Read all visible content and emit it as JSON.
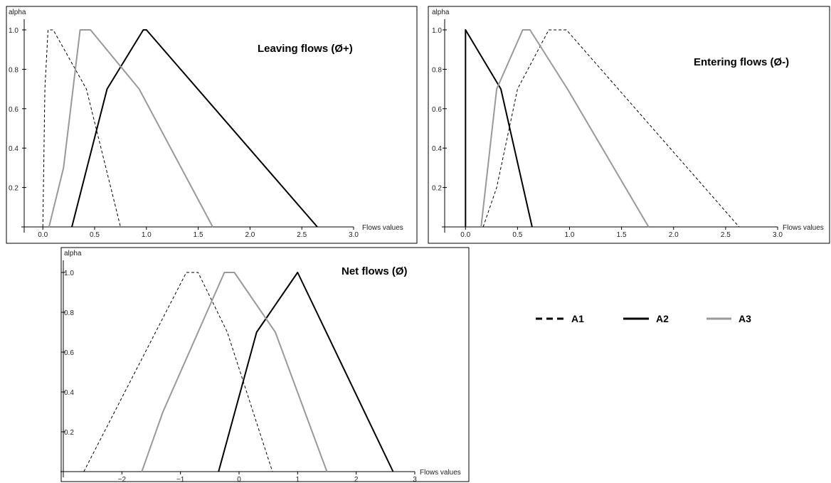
{
  "figure": {
    "legend": [
      {
        "label": "A1",
        "color": "#000000",
        "style": "dashed"
      },
      {
        "label": "A2",
        "color": "#000000",
        "style": "solid"
      },
      {
        "label": "A3",
        "color": "#999999",
        "style": "solid"
      }
    ]
  },
  "chart_data": [
    {
      "type": "line",
      "title": "Leaving flows (Ø+)",
      "xlabel": "Flows values",
      "ylabel": "alpha",
      "xlim": [
        -0.18,
        3.0
      ],
      "ylim": [
        0,
        1.05
      ],
      "x_ticks": [
        0.0,
        0.5,
        1.0,
        1.5,
        2.0,
        2.5,
        3.0
      ],
      "x_tick_labels": [
        "0.0",
        "0.5",
        "1.0",
        "1.5",
        "2.0",
        "2.5",
        "3.0"
      ],
      "y_ticks": [
        0.2,
        0.4,
        0.6,
        0.8,
        1.0
      ],
      "y_tick_labels": [
        "0.2",
        "0.4",
        "0.6",
        "0.8",
        "1.0"
      ],
      "grid": false,
      "series": [
        {
          "name": "A1",
          "color": "#000000",
          "dash": "dashed",
          "points": [
            [
              0.0,
              0
            ],
            [
              0.02,
              0.7
            ],
            [
              0.05,
              1.0
            ],
            [
              0.1,
              1.0
            ],
            [
              0.42,
              0.7
            ],
            [
              0.75,
              0
            ]
          ]
        },
        {
          "name": "A2",
          "color": "#000000",
          "dash": "solid",
          "points": [
            [
              0.28,
              0
            ],
            [
              0.62,
              0.7
            ],
            [
              0.97,
              1.0
            ],
            [
              1.0,
              1.0
            ],
            [
              2.65,
              0
            ]
          ]
        },
        {
          "name": "A3",
          "color": "#999999",
          "dash": "solid",
          "points": [
            [
              0.06,
              0
            ],
            [
              0.2,
              0.3
            ],
            [
              0.36,
              1.0
            ],
            [
              0.46,
              1.0
            ],
            [
              0.93,
              0.7
            ],
            [
              1.64,
              0
            ]
          ]
        }
      ]
    },
    {
      "type": "line",
      "title": "Entering flows (Ø-)",
      "xlabel": "Flows values",
      "ylabel": "alpha",
      "xlim": [
        -0.2,
        3.0
      ],
      "ylim": [
        0,
        1.05
      ],
      "x_ticks": [
        0.0,
        0.5,
        1.0,
        1.5,
        2.0,
        2.5,
        3.0
      ],
      "x_tick_labels": [
        "0.0",
        "0.5",
        "1.0",
        "1.5",
        "2.0",
        "2.5",
        "3.0"
      ],
      "y_ticks": [
        0.2,
        0.4,
        0.6,
        0.8,
        1.0
      ],
      "y_tick_labels": [
        "0.2",
        "0.4",
        "0.6",
        "0.8",
        "1.0"
      ],
      "grid": false,
      "series": [
        {
          "name": "A1",
          "color": "#000000",
          "dash": "dashed",
          "points": [
            [
              0.17,
              0
            ],
            [
              0.3,
              0.2
            ],
            [
              0.5,
              0.7
            ],
            [
              0.8,
              1.0
            ],
            [
              0.97,
              1.0
            ],
            [
              2.63,
              0
            ]
          ]
        },
        {
          "name": "A2",
          "color": "#000000",
          "dash": "solid",
          "points": [
            [
              0.0,
              0
            ],
            [
              0.0,
              1.0
            ],
            [
              0.34,
              0.7
            ],
            [
              0.64,
              0
            ]
          ]
        },
        {
          "name": "A3",
          "color": "#999999",
          "dash": "solid",
          "points": [
            [
              0.15,
              0
            ],
            [
              0.3,
              0.7
            ],
            [
              0.55,
              1.0
            ],
            [
              0.62,
              1.0
            ],
            [
              0.98,
              0.7
            ],
            [
              1.76,
              0
            ]
          ]
        }
      ]
    },
    {
      "type": "line",
      "title": "Net flows (Ø)",
      "xlabel": "Flows values",
      "ylabel": "alpha",
      "xlim": [
        -3.0,
        3.0
      ],
      "ylim": [
        0,
        1.05
      ],
      "x_ticks": [
        -2,
        -1,
        0,
        1,
        2,
        3
      ],
      "x_tick_labels": [
        "−2",
        "−1",
        "0",
        "1",
        "2",
        "3"
      ],
      "y_ticks": [
        0.2,
        0.4,
        0.6,
        0.8,
        1.0
      ],
      "y_tick_labels": [
        "0.2",
        "0.4",
        "0.6",
        "0.8",
        "1.0"
      ],
      "grid": false,
      "series": [
        {
          "name": "A1",
          "color": "#000000",
          "dash": "dashed",
          "points": [
            [
              -2.65,
              0
            ],
            [
              -0.9,
              1.0
            ],
            [
              -0.7,
              1.0
            ],
            [
              -0.2,
              0.7
            ],
            [
              0.57,
              0
            ]
          ]
        },
        {
          "name": "A2",
          "color": "#000000",
          "dash": "solid",
          "points": [
            [
              -0.35,
              0
            ],
            [
              0.3,
              0.7
            ],
            [
              1.0,
              1.0
            ],
            [
              2.63,
              0
            ]
          ]
        },
        {
          "name": "A3",
          "color": "#999999",
          "dash": "solid",
          "points": [
            [
              -1.66,
              0
            ],
            [
              -1.3,
              0.3
            ],
            [
              -0.25,
              1.0
            ],
            [
              -0.08,
              1.0
            ],
            [
              0.62,
              0.7
            ],
            [
              1.5,
              0
            ]
          ]
        }
      ]
    }
  ]
}
